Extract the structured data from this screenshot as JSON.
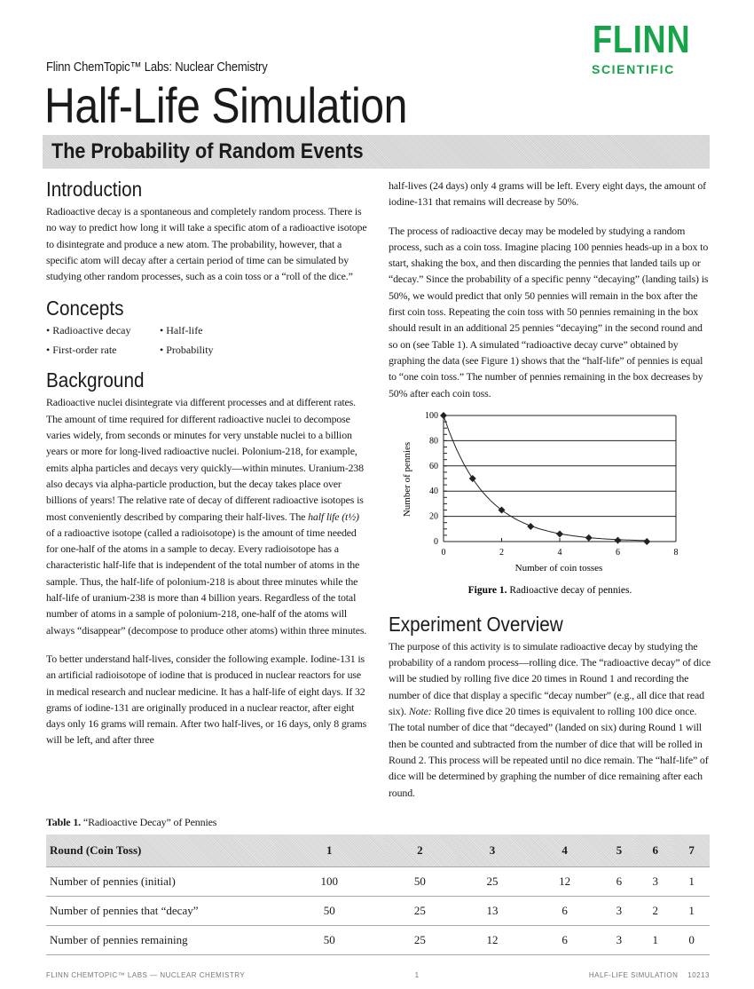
{
  "header": {
    "series": "Flinn ChemTopic™ Labs: Nuclear Chemistry",
    "title": "Half-Life Simulation",
    "subtitle": "The Probability of Random Events",
    "logo": {
      "line1": "FLINN",
      "line2": "SCIENTIFIC",
      "color": "#17a34a"
    }
  },
  "introduction": {
    "heading": "Introduction",
    "text": "Radioactive decay is a spontaneous and completely random process. There is no way to predict how long it will take a specific atom of a radioactive isotope to disintegrate and produce a new atom. The probability, however, that a specific atom will decay after a certain period of time can be simulated by studying other random processes, such as a coin toss or a “roll of the dice.”"
  },
  "concepts": {
    "heading": "Concepts",
    "items": [
      "• Radioactive decay",
      "• Half-life",
      "• First-order rate",
      "• Probability"
    ]
  },
  "background": {
    "heading": "Background",
    "p1a": "Radioactive nuclei disintegrate via different processes and at different rates. The amount of time required for different radioactive nuclei to decompose varies widely, from seconds or minutes for very unstable nuclei to a billion years or more for long-lived radioactive nuclei. Polonium-218, for example, emits alpha particles and decays very quickly—within minutes. Uranium-238 also decays via alpha-particle production, but the decay takes place over billions of years! The relative rate of decay of different radioactive isotopes is most conveniently described by comparing their half-lives. The ",
    "p1_italic": "half life (t½)",
    "p1b": " of a radioactive isotope (called a radioisotope) is the amount of time needed for one-half of the atoms in a sample to decay. Every radioisotope has a characteristic half-life that is independent of the total number of atoms in the sample. Thus, the half-life of polonium-218 is about three minutes while the half-life of uranium-238 is more than 4 billion years. Regardless of the total number of atoms in a sample of polonium-218, one-half of the atoms will always “disappear” (decompose to produce other atoms) within three minutes.",
    "p2": "To better understand half-lives, consider the following example. Iodine-131 is an artificial radioisotope of iodine that is produced in nuclear reactors for use in medical research and nuclear medicine. It has a half-life of eight days. If 32 grams of iodine-131 are originally produced in a nuclear reactor, after eight days only 16 grams will remain. After two half-lives, or 16 days, only 8 grams will be left, and after three",
    "p2_cont": "half-lives (24 days) only 4 grams will be left. Every eight days, the amount of iodine-131 that remains will decrease by 50%.",
    "p3": "The process of radioactive decay may be modeled by studying a random process, such as a coin toss. Imagine placing 100 pennies heads-up in a box to start, shaking the box, and then discarding the pennies that landed tails up or “decay.” Since the probability of a specific penny “decaying” (landing tails) is 50%, we would predict that only 50 pennies will remain in the box after the first coin toss. Repeating the coin toss with 50 pennies remaining in the box should result in an additional 25 pennies “decaying” in the second round and so on (see Table 1). A simulated “radioactive decay curve” obtained by graphing the data (see Figure 1) shows that the “half-life” of pennies is equal to “one coin toss.” The number of pennies remaining in the box decreases by 50% after each coin toss."
  },
  "chart_data": {
    "type": "scatter",
    "x": [
      0,
      1,
      2,
      3,
      4,
      5,
      6,
      7
    ],
    "y": [
      100,
      50,
      25,
      12,
      6,
      3,
      1,
      0
    ],
    "fit": "exponential decay curve",
    "xlabel": "Number of coin tosses",
    "ylabel": "Number of pennies",
    "xlim": [
      0,
      8
    ],
    "ylim": [
      0,
      100
    ],
    "xticks": [
      "0",
      "2",
      "4",
      "6",
      "8"
    ],
    "yticks": [
      "0",
      "20",
      "40",
      "60",
      "80",
      "100"
    ],
    "grid": "horizontal",
    "caption_label": "Figure 1.",
    "caption": " Radioactive decay of pennies."
  },
  "experiment": {
    "heading": "Experiment Overview",
    "a": "The purpose of this activity is to simulate radioactive decay by studying the probability of a random process—rolling dice. The “radioactive decay” of dice will be studied by rolling five dice 20 times in Round 1 and recording the number of dice that display a specific “decay number” (e.g., all dice that read six). ",
    "note": "Note:",
    "b": " Rolling five dice 20 times is equivalent to rolling 100 dice once. The total number of dice that “decayed” (landed on six) during Round 1 will then be counted and subtracted from the number of dice that will be rolled in Round 2. This process will be repeated until no dice remain. The “half-life” of dice will be determined by graphing the number of dice remaining after each round."
  },
  "table": {
    "caption_label": "Table 1.",
    "caption": " “Radioactive Decay” of Pennies",
    "header": [
      "Round (Coin Toss)",
      "1",
      "2",
      "3",
      "4",
      "5",
      "6",
      "7"
    ],
    "rows": [
      [
        "Number of pennies (initial)",
        "100",
        "50",
        "25",
        "12",
        "6",
        "3",
        "1"
      ],
      [
        "Number of pennies that “decay”",
        "50",
        "25",
        "13",
        "6",
        "3",
        "2",
        "1"
      ],
      [
        "Number of pennies remaining",
        "50",
        "25",
        "12",
        "6",
        "3",
        "1",
        "0"
      ]
    ]
  },
  "footer": {
    "left": "FLINN CHEMTOPIC™ LABS — NUCLEAR CHEMISTRY",
    "page": "1",
    "right": "HALF-LIFE SIMULATION    10213"
  }
}
